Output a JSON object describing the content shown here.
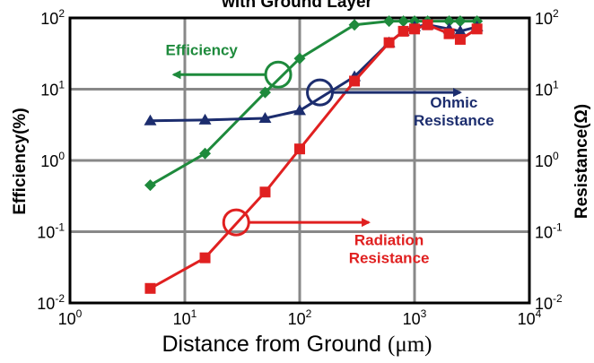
{
  "chart_data": {
    "type": "line",
    "title": "with Ground Layer",
    "xlabel_text": "Distance from Ground ",
    "xlabel_unit": "(μm)",
    "ylabel_left": "Efficiency(%)",
    "ylabel_right": "Resistance(Ω)",
    "x_scale": "log",
    "y_scale": "log",
    "xlim": [
      1,
      10000
    ],
    "ylim": [
      0.01,
      100
    ],
    "grid": true,
    "x_ticks": [
      {
        "base": "10",
        "exp": "0"
      },
      {
        "base": "10",
        "exp": "1"
      },
      {
        "base": "10",
        "exp": "2"
      },
      {
        "base": "10",
        "exp": "3"
      },
      {
        "base": "10",
        "exp": "4"
      }
    ],
    "y_ticks": [
      {
        "base": "10",
        "exp": "-2"
      },
      {
        "base": "10",
        "exp": "-1"
      },
      {
        "base": "10",
        "exp": "0"
      },
      {
        "base": "10",
        "exp": "1"
      },
      {
        "base": "10",
        "exp": "2"
      }
    ],
    "series": [
      {
        "name": "Efficiency",
        "color": "#1e8a3c",
        "marker": "diamond",
        "x": [
          5,
          15,
          50,
          100,
          300,
          600,
          800,
          1000,
          1300,
          2000,
          2500,
          3500
        ],
        "y": [
          0.45,
          1.25,
          9,
          27,
          80,
          90,
          90,
          90,
          90,
          90,
          90,
          90
        ]
      },
      {
        "name": "Ohmic Resistance",
        "color": "#1c2d6e",
        "marker": "triangle",
        "x": [
          5,
          15,
          50,
          100,
          300,
          600,
          800,
          1000,
          1300,
          2000,
          2500,
          3500
        ],
        "y": [
          3.6,
          3.7,
          3.9,
          5,
          15,
          45,
          65,
          75,
          80,
          70,
          65,
          75
        ]
      },
      {
        "name": "Radiation Resistance",
        "color": "#e02020",
        "marker": "square",
        "x": [
          5,
          15,
          50,
          100,
          300,
          600,
          800,
          1000,
          1300,
          2000,
          2500,
          3500
        ],
        "y": [
          0.016,
          0.043,
          0.36,
          1.45,
          13,
          45,
          65,
          70,
          80,
          60,
          50,
          70
        ]
      }
    ],
    "annotations": [
      {
        "lines": [
          "Efficiency"
        ],
        "color": "#1e8a3c",
        "circle": [
          65,
          16
        ],
        "arrow_to": [
          8,
          16
        ],
        "label_at": [
          14,
          30
        ]
      },
      {
        "lines": [
          "Ohmic",
          "Resistance"
        ],
        "color": "#1c2d6e",
        "circle": [
          150,
          9
        ],
        "arrow_to": [
          2500,
          9
        ],
        "label_at": [
          2200,
          5.5
        ]
      },
      {
        "lines": [
          "Radiation",
          "Resistance"
        ],
        "color": "#e02020",
        "circle": [
          28,
          0.135
        ],
        "arrow_to": [
          400,
          0.135
        ],
        "label_at": [
          600,
          0.065
        ]
      }
    ]
  }
}
